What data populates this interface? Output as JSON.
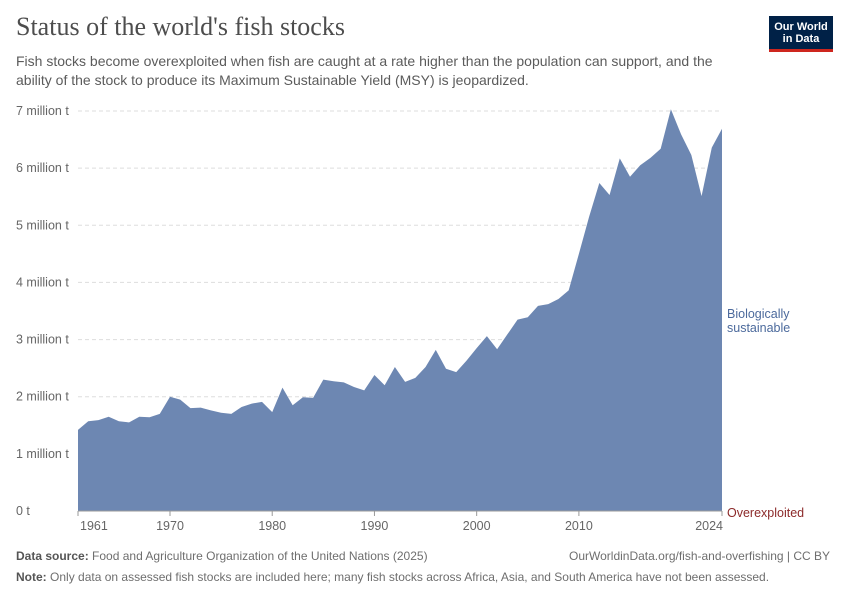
{
  "header": {
    "title": "Status of the world's fish stocks",
    "subtitle": "Fish stocks become overexploited when fish are caught at a rate higher than the population can support, and the ability of the stock to produce its Maximum Sustainable Yield (MSY) is jeopardized.",
    "logo_line1": "Our World",
    "logo_line2": "in Data"
  },
  "footer": {
    "source_label": "Data source:",
    "source_text": "Food and Agriculture Organization of the United Nations (2025)",
    "url_text": "OurWorldinData.org/fish-and-overfishing | CC BY",
    "note_label": "Note:",
    "note_text": "Only data on assessed fish stocks are included here; many fish stocks across Africa, Asia, and South America have not been assessed."
  },
  "colors": {
    "sustainable": "#6d87b2",
    "sustainable_label": "#4c6a9c",
    "overexploited": "#8c2a2a",
    "logo_bg": "#002147",
    "logo_accent": "#ce261e"
  },
  "chart_data": {
    "type": "area",
    "stacked": true,
    "title": "Status of the world's fish stocks",
    "unit": "t",
    "ylim": [
      0,
      7000000
    ],
    "y_ticks": [
      0,
      1000000,
      2000000,
      3000000,
      4000000,
      5000000,
      6000000,
      7000000
    ],
    "y_tick_labels": [
      "0 t",
      "1 million t",
      "2 million t",
      "3 million t",
      "4 million t",
      "5 million t",
      "6 million t",
      "7 million t"
    ],
    "xlim": [
      1961,
      2024
    ],
    "x_ticks": [
      1961,
      1970,
      1980,
      1990,
      2000,
      2010,
      2024
    ],
    "x_tick_labels": [
      "1961",
      "1970",
      "1980",
      "1990",
      "2000",
      "2010",
      "2024"
    ],
    "grid": true,
    "x": [
      1961,
      1962,
      1963,
      1964,
      1965,
      1966,
      1967,
      1968,
      1969,
      1970,
      1971,
      1972,
      1973,
      1974,
      1975,
      1976,
      1977,
      1978,
      1979,
      1980,
      1981,
      1982,
      1983,
      1984,
      1985,
      1986,
      1987,
      1988,
      1989,
      1990,
      1991,
      1992,
      1993,
      1994,
      1995,
      1996,
      1997,
      1998,
      1999,
      2000,
      2001,
      2002,
      2003,
      2004,
      2005,
      2006,
      2007,
      2008,
      2009,
      2010,
      2011,
      2012,
      2013,
      2014,
      2015,
      2016,
      2017,
      2018,
      2019,
      2020,
      2021,
      2022,
      2023,
      2024
    ],
    "series": [
      {
        "name": "Biologically sustainable",
        "label_lines": [
          "Biologically",
          "sustainable"
        ],
        "values": [
          1420000,
          1570000,
          1590000,
          1650000,
          1570000,
          1550000,
          1650000,
          1640000,
          1700000,
          2000000,
          1950000,
          1800000,
          1810000,
          1760000,
          1720000,
          1700000,
          1820000,
          1880000,
          1910000,
          1730000,
          2160000,
          1850000,
          1990000,
          1980000,
          2300000,
          2270000,
          2250000,
          2170000,
          2110000,
          2380000,
          2200000,
          2520000,
          2260000,
          2330000,
          2520000,
          2820000,
          2490000,
          2430000,
          2630000,
          2850000,
          3060000,
          2830000,
          3090000,
          3350000,
          3390000,
          3590000,
          3620000,
          3710000,
          3860000,
          4500000,
          5150000,
          5740000,
          5530000,
          6170000,
          5850000,
          6050000,
          6180000,
          6340000,
          7030000,
          6590000,
          6230000,
          5510000,
          6360000,
          6690000
        ]
      },
      {
        "name": "Overexploited",
        "label_lines": [
          "Overexploited"
        ],
        "values": [
          0,
          0,
          0,
          0,
          0,
          0,
          0,
          0,
          0,
          0,
          0,
          0,
          0,
          0,
          0,
          0,
          0,
          0,
          0,
          0,
          0,
          0,
          0,
          0,
          0,
          0,
          0,
          0,
          0,
          0,
          0,
          0,
          0,
          0,
          0,
          0,
          0,
          0,
          0,
          0,
          0,
          0,
          0,
          0,
          0,
          0,
          0,
          0,
          0,
          0,
          0,
          0,
          0,
          0,
          0,
          0,
          0,
          0,
          0,
          0,
          0,
          0,
          0,
          0
        ]
      }
    ]
  }
}
